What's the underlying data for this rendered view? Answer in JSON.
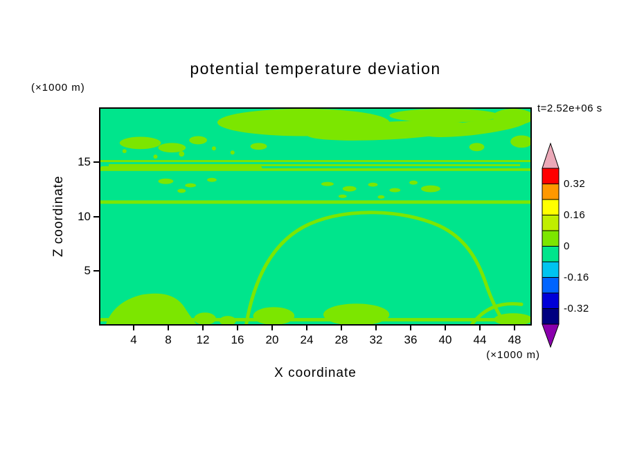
{
  "title": "potential temperature deviation",
  "annotations": {
    "time": "t=2.52e+06 s"
  },
  "axes": {
    "x": {
      "label": "X coordinate",
      "unit": "(×1000 m)"
    },
    "y": {
      "label": "Z coordinate",
      "unit": "(×1000 m)"
    }
  },
  "colorbar": {
    "labels": [
      "0.32",
      "0.16",
      "0",
      "-0.16",
      "-0.32"
    ]
  },
  "colors": {
    "background_band": "#00E58C",
    "positive_band": "#7CE600",
    "axis": "#000000",
    "text": "#000000",
    "colorbar_segments_top_to_bottom": [
      "#FF0000",
      "#FF9800",
      "#FFFF00",
      "#C0EE00",
      "#7CE600",
      "#00E58C",
      "#00C4F0",
      "#0064FF",
      "#0000D8",
      "#000080"
    ],
    "colorbar_top_arrow": "#EBA9B8",
    "colorbar_bottom_arrow": "#8A00AD"
  },
  "chart_data": {
    "type": "heatmap",
    "subtype": "filled-contour",
    "title": "potential temperature deviation",
    "xlabel": "X coordinate",
    "ylabel": "Z coordinate",
    "x_unit": "(×1000 m)",
    "y_unit": "(×1000 m)",
    "time_annotation": "t=2.52e+06 s",
    "xlim": [
      0,
      50
    ],
    "ylim": [
      0,
      20
    ],
    "xticks": [
      4,
      8,
      12,
      16,
      20,
      24,
      28,
      32,
      36,
      40,
      44,
      48
    ],
    "yticks": [
      5,
      10,
      15
    ],
    "grid": false,
    "legend_position": "right",
    "contour_levels": [
      -0.4,
      -0.32,
      -0.24,
      -0.16,
      -0.08,
      0,
      0.08,
      0.16,
      0.24,
      0.32,
      0.4
    ],
    "colorbar_tick_labels": [
      "0.32",
      "0.16",
      "0",
      "-0.16",
      "-0.32"
    ],
    "colorbar_has_over_under_arrows": true,
    "field_summary": "Potential temperature deviation is near zero over the whole domain: the background lies in the -0.08 to 0 band (spring green) and slightly positive features in the 0 to 0.08 band (yellow-green). Visible positive features: thin horizontal layers near z≈14.5 and z≈11 (×1000 m) spanning all x, a thin near-surface layer, irregular plume blobs aloft near z≈16–18 between x≈15 and x≈50, scattered speckles near z≈12–13, low hills along the surface near x≈4–7, x≈20, x≈28–31, and an arched plume outline rising from the surface between x≈17 and x≈47."
  }
}
